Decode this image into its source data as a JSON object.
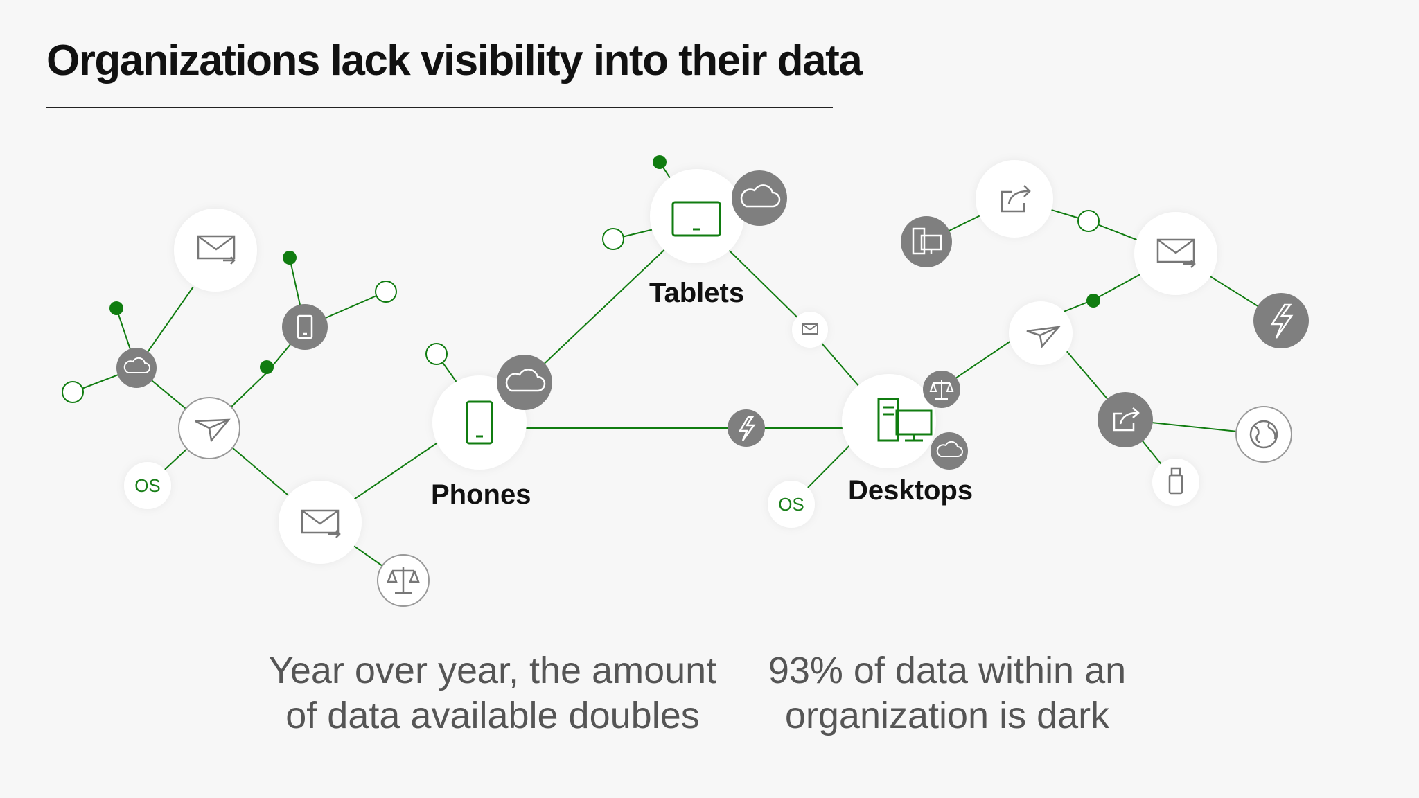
{
  "title": "Organizations lack visibility into their data",
  "devices": {
    "phones": "Phones",
    "tablets": "Tablets",
    "desktops": "Desktops"
  },
  "node_labels": {
    "os": "OS"
  },
  "stats": [
    {
      "line1": "Year over year, the amount",
      "line2": "of data available doubles"
    },
    {
      "line1": "93% of data within an",
      "line2": "organization is dark"
    }
  ],
  "colors": {
    "accent_green": "#107c10",
    "node_gray": "#7f7f7f",
    "node_white": "#ffffff",
    "background": "#f7f7f7"
  },
  "icons": [
    "mail-icon",
    "send-icon",
    "cloud-icon",
    "phone-icon",
    "tablet-icon",
    "desktop-icon",
    "share-icon",
    "lightning-icon",
    "scales-icon",
    "globe-icon",
    "usb-icon"
  ]
}
